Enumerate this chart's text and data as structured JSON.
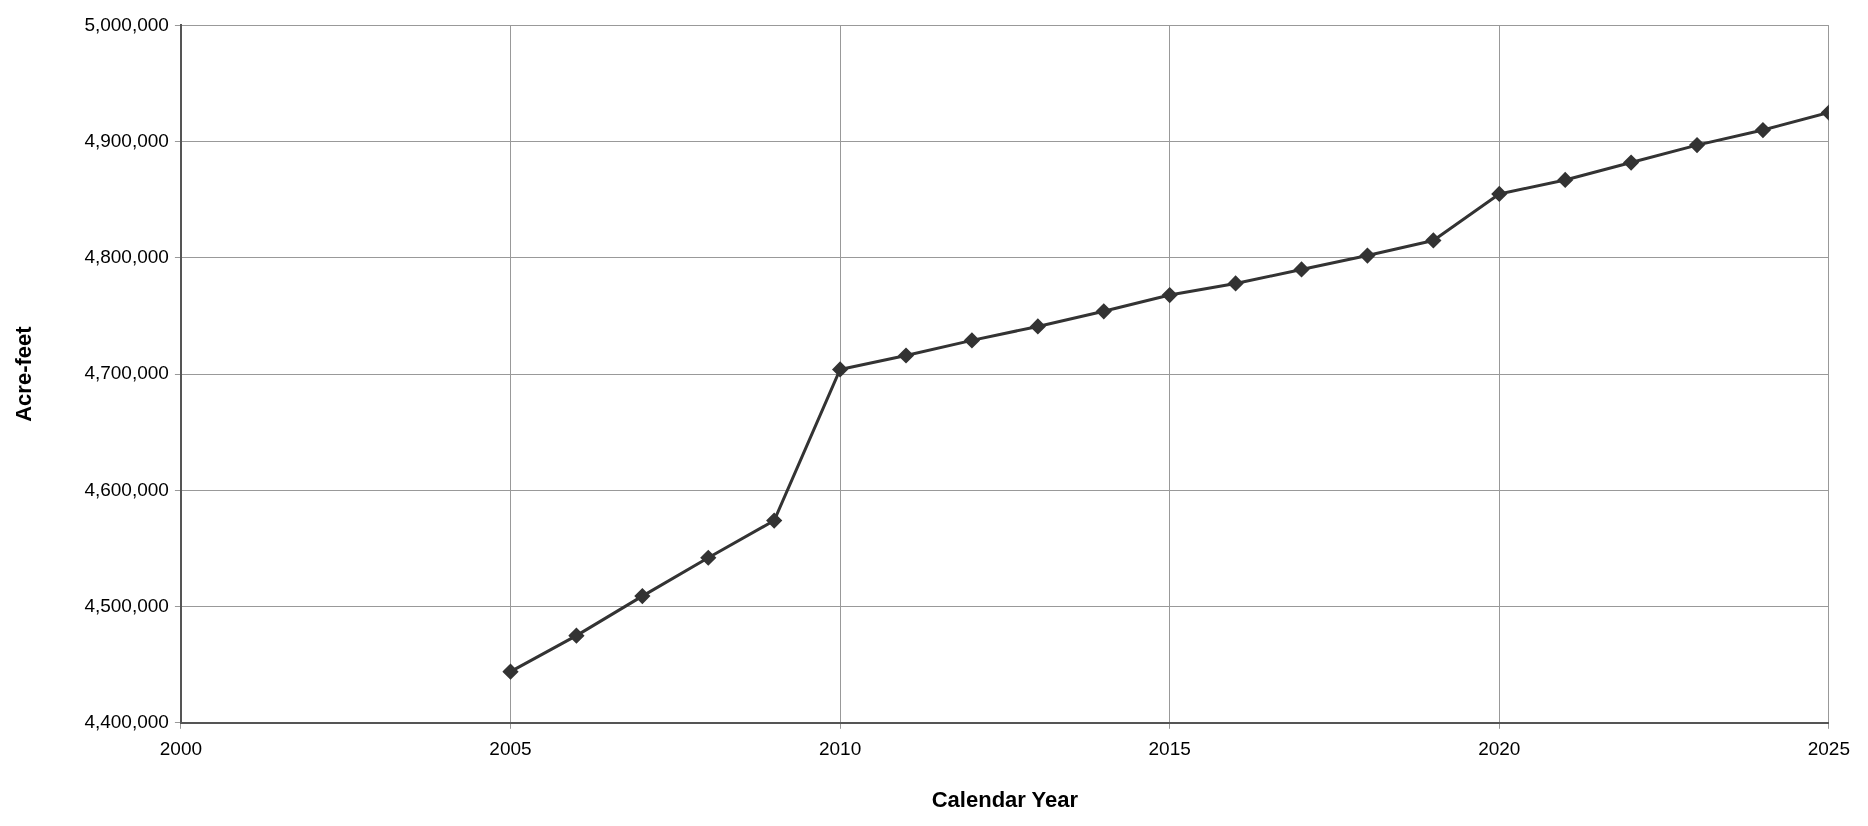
{
  "chart_data": {
    "type": "line",
    "xlabel": "Calendar Year",
    "ylabel": "Acre-feet",
    "x": [
      2005,
      2006,
      2007,
      2008,
      2009,
      2010,
      2011,
      2012,
      2013,
      2014,
      2015,
      2016,
      2017,
      2018,
      2019,
      2020,
      2021,
      2022,
      2023,
      2024,
      2025
    ],
    "series": [
      {
        "color": "#333333",
        "values": [
          4444000,
          4475000,
          4509000,
          4542000,
          4574000,
          4704000,
          4716000,
          4729000,
          4741000,
          4754000,
          4768000,
          4778000,
          4790000,
          4802000,
          4815000,
          4855000,
          4867000,
          4882000,
          4897000,
          4910000,
          4925000
        ]
      }
    ],
    "xlim": [
      2000,
      2025
    ],
    "xticks": [
      2000,
      2005,
      2010,
      2015,
      2020,
      2025
    ],
    "ylim": [
      4400000,
      5000000
    ],
    "yticks": [
      {
        "value": 4400000,
        "label": "4,400,000"
      },
      {
        "value": 4500000,
        "label": "4,500,000"
      },
      {
        "value": 4600000,
        "label": "4,600,000"
      },
      {
        "value": 4700000,
        "label": "4,700,000"
      },
      {
        "value": 4800000,
        "label": "4,800,000"
      },
      {
        "value": 4900000,
        "label": "4,900,000"
      },
      {
        "value": 5000000,
        "label": "5,000,000"
      }
    ],
    "grid": true,
    "legend": false,
    "marker": "diamond",
    "line_style": "solid"
  }
}
